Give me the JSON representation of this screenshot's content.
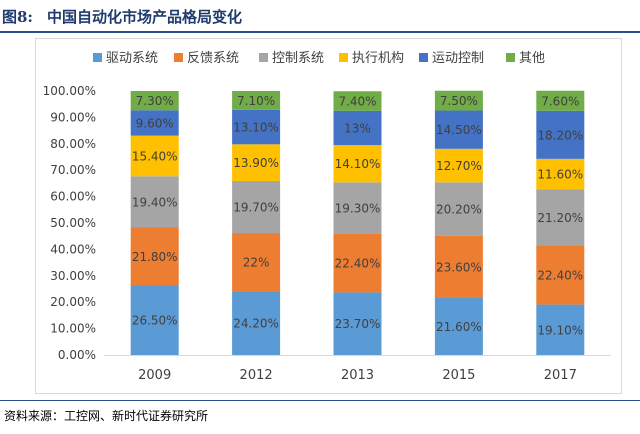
{
  "figure": {
    "label": "图8:",
    "title": "中国自动化市场产品格局变化",
    "source": "资料来源：工控网、新时代证券研究所"
  },
  "chart_data": {
    "type": "bar",
    "stacked": true,
    "title": "",
    "xlabel": "",
    "ylabel": "",
    "ylim": [
      0,
      100
    ],
    "y_ticks": [
      "0.00%",
      "10.00%",
      "20.00%",
      "30.00%",
      "40.00%",
      "50.00%",
      "60.00%",
      "70.00%",
      "80.00%",
      "90.00%",
      "100.00%"
    ],
    "categories": [
      "2009",
      "2012",
      "2013",
      "2015",
      "2017"
    ],
    "legend_position": "top",
    "series": [
      {
        "name": "驱动系统",
        "color": "#5b9bd5",
        "values": [
          26.5,
          24.2,
          23.7,
          21.6,
          19.1
        ],
        "labels": [
          "26.50%",
          "24.20%",
          "23.70%",
          "21.60%",
          "19.10%"
        ]
      },
      {
        "name": "反馈系统",
        "color": "#ed7d31",
        "values": [
          21.8,
          22,
          22.4,
          23.6,
          22.4
        ],
        "labels": [
          "21.80%",
          "22%",
          "22.40%",
          "23.60%",
          "22.40%"
        ]
      },
      {
        "name": "控制系统",
        "color": "#a5a5a5",
        "values": [
          19.4,
          19.7,
          19.3,
          20.2,
          21.2
        ],
        "labels": [
          "19.40%",
          "19.70%",
          "19.30%",
          "20.20%",
          "21.20%"
        ]
      },
      {
        "name": "执行机构",
        "color": "#ffc000",
        "values": [
          15.4,
          13.9,
          14.1,
          12.7,
          11.6
        ],
        "labels": [
          "15.40%",
          "13.90%",
          "14.10%",
          "12.70%",
          "11.60%"
        ]
      },
      {
        "name": "运动控制",
        "color": "#4472c4",
        "values": [
          9.6,
          13.1,
          13,
          14.5,
          18.2
        ],
        "labels": [
          "9.60%",
          "13.10%",
          "13%",
          "14.50%",
          "18.20%"
        ]
      },
      {
        "name": "其他",
        "color": "#70ad47",
        "values": [
          7.3,
          7.1,
          7.4,
          7.5,
          7.6
        ],
        "labels": [
          "7.30%",
          "7.10%",
          "7.40%",
          "7.50%",
          "7.60%"
        ]
      }
    ]
  }
}
